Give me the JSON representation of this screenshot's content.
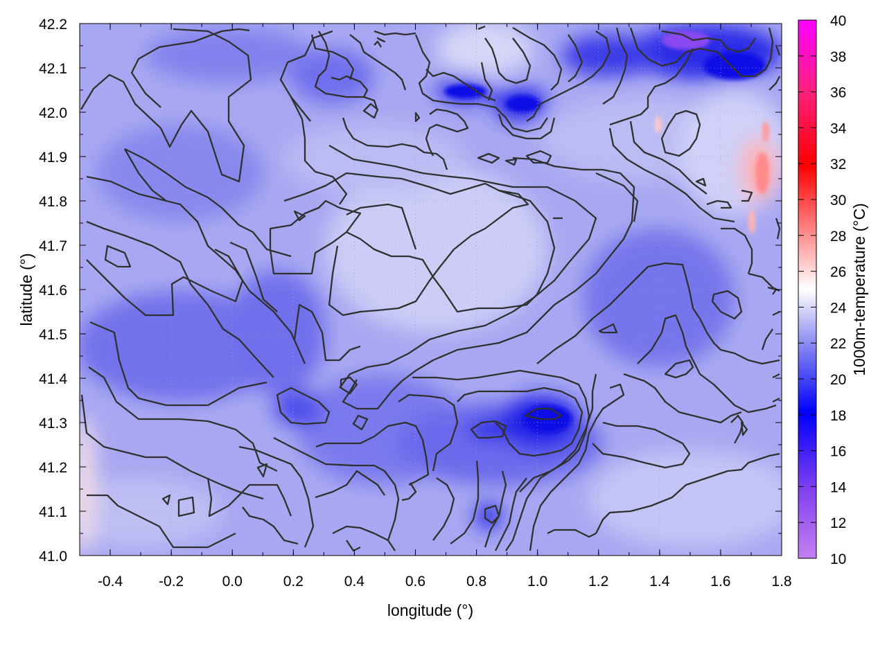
{
  "chart_data": {
    "type": "heatmap",
    "xlabel": "longitude (°)",
    "ylabel": "latitude (°)",
    "colorbar_label": "1000m-temperature (°C)",
    "xlim": [
      -0.5,
      1.8
    ],
    "ylim": [
      41.0,
      42.2
    ],
    "x_ticks": [
      "-0.4",
      "-0.2",
      "0.0",
      "0.2",
      "0.4",
      "0.6",
      "0.8",
      "1.0",
      "1.2",
      "1.4",
      "1.6",
      "1.8"
    ],
    "y_ticks": [
      "41.0",
      "41.1",
      "41.2",
      "41.3",
      "41.4",
      "41.5",
      "41.6",
      "41.7",
      "41.8",
      "41.9",
      "42.0",
      "42.1",
      "42.2"
    ],
    "colorbar_range": [
      10,
      40
    ],
    "colorbar_ticks": [
      "10",
      "12",
      "14",
      "16",
      "18",
      "20",
      "22",
      "24",
      "26",
      "28",
      "30",
      "32",
      "34",
      "36",
      "38",
      "40"
    ],
    "grid": true,
    "overlay": "contour lines",
    "colormap": [
      {
        "value": 10,
        "color": "#c480f0"
      },
      {
        "value": 14,
        "color": "#8040f0"
      },
      {
        "value": 18,
        "color": "#0000ff"
      },
      {
        "value": 22,
        "color": "#8c8cf0"
      },
      {
        "value": 25,
        "color": "#ffffff"
      },
      {
        "value": 28,
        "color": "#ff9090"
      },
      {
        "value": 32,
        "color": "#ff0000"
      },
      {
        "value": 36,
        "color": "#ff2080"
      },
      {
        "value": 40,
        "color": "#ff00ff"
      }
    ],
    "field_description": "mostly 21-24 °C, cold patches ~14-17 °C near 42.1N 0.8-1.7E and 41.3N 0.8-1.0E, warm streaks ~28 °C near 41.85N 1.75E"
  }
}
